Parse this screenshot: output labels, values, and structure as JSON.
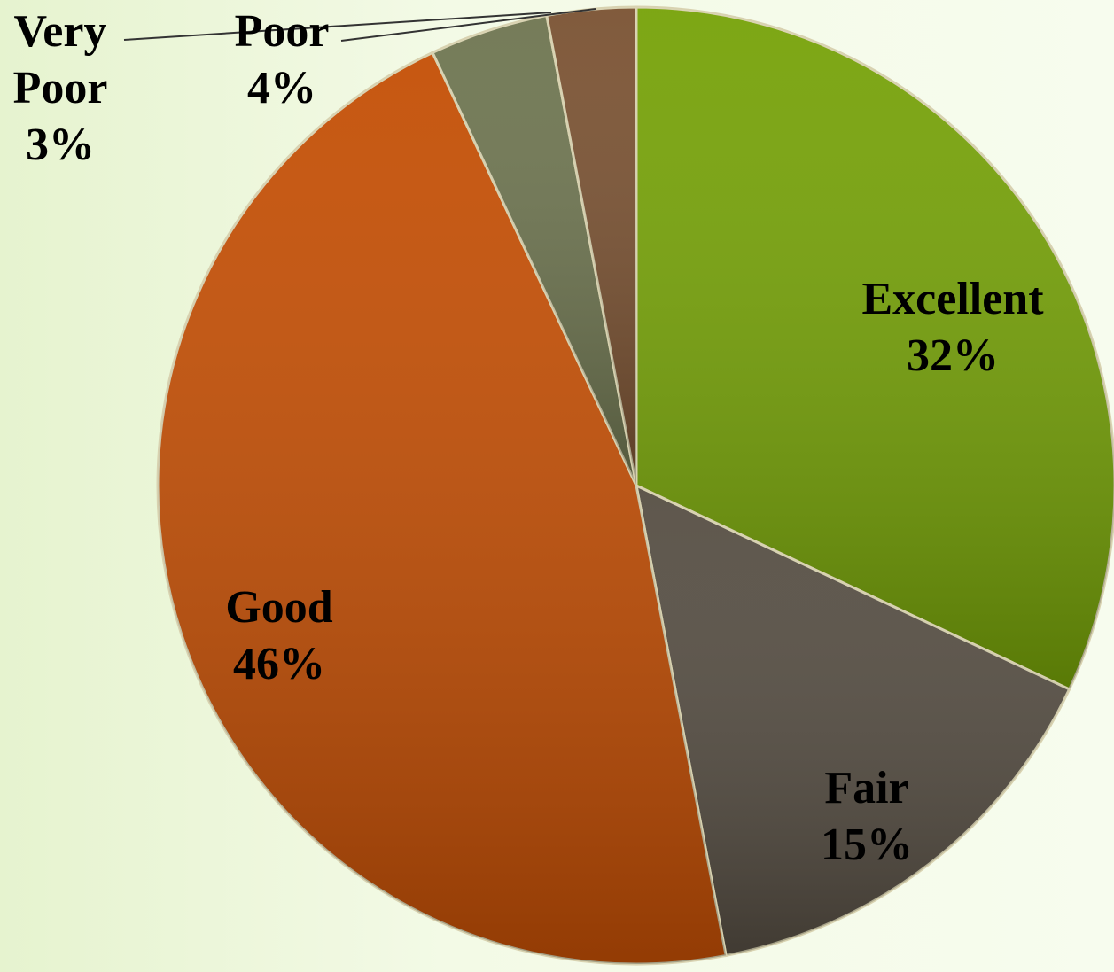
{
  "chart_data": {
    "type": "pie",
    "categories": [
      "Excellent",
      "Fair",
      "Good",
      "Poor",
      "Very Poor"
    ],
    "values": [
      32,
      15,
      46,
      4,
      3
    ],
    "value_labels": [
      "32%",
      "15%",
      "46%",
      "4%",
      "3%"
    ],
    "colors": [
      "#76a208",
      "#564e43",
      "#c44f05",
      "#6e7550",
      "#7a5232"
    ]
  }
}
